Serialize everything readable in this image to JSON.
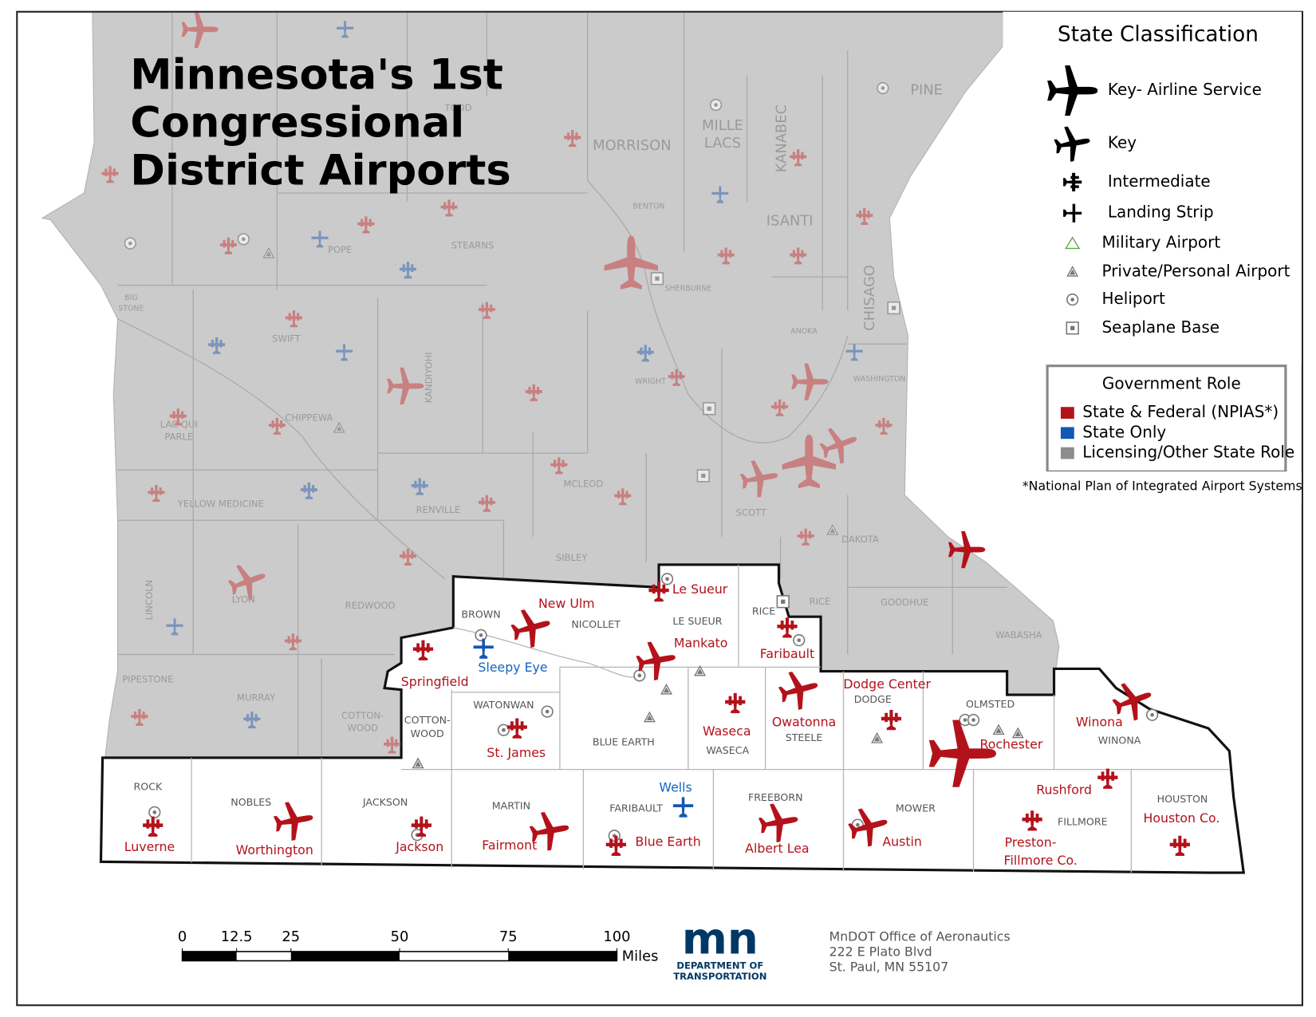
{
  "title": [
    "Minnesota's 1st",
    "Congressional",
    "District Airports"
  ],
  "legend": {
    "title": "State Classification",
    "items": [
      "Key- Airline Service",
      "Key",
      "Intermediate",
      "Landing Strip",
      "Military Airport",
      "Private/Personal Airport",
      "Heliport",
      "Seaplane Base"
    ],
    "role_title": "Government Role",
    "roles": [
      {
        "label": "State & Federal (NPIAS*)",
        "color": "#b3121b"
      },
      {
        "label": "State Only",
        "color": "#1258b4"
      },
      {
        "label": "Licensing/Other State Role",
        "color": "#8c8c8c"
      }
    ],
    "footnote": "*National Plan of Integrated Airport Systems"
  },
  "airports": [
    {
      "name": "Le Sueur",
      "class": "Intermediate",
      "role": "State & Federal (NPIAS*)"
    },
    {
      "name": "New Ulm",
      "class": "Key",
      "role": "State & Federal (NPIAS*)"
    },
    {
      "name": "Springfield",
      "class": "Intermediate",
      "role": "State & Federal (NPIAS*)"
    },
    {
      "name": "Sleepy Eye",
      "class": "Landing Strip",
      "role": "State Only"
    },
    {
      "name": "Mankato",
      "class": "Key",
      "role": "State & Federal (NPIAS*)"
    },
    {
      "name": "Faribault",
      "class": "Intermediate",
      "role": "State & Federal (NPIAS*)"
    },
    {
      "name": "Waseca",
      "class": "Intermediate",
      "role": "State & Federal (NPIAS*)"
    },
    {
      "name": "Owatonna",
      "class": "Key",
      "role": "State & Federal (NPIAS*)"
    },
    {
      "name": "Dodge Center",
      "class": "Intermediate",
      "role": "State & Federal (NPIAS*)"
    },
    {
      "name": "Rochester",
      "class": "Key- Airline Service",
      "role": "State & Federal (NPIAS*)"
    },
    {
      "name": "Winona",
      "class": "Key",
      "role": "State & Federal (NPIAS*)"
    },
    {
      "name": "St. James",
      "class": "Intermediate",
      "role": "State & Federal (NPIAS*)"
    },
    {
      "name": "Rushford",
      "class": "Intermediate",
      "role": "State & Federal (NPIAS*)"
    },
    {
      "name": "Houston Co.",
      "class": "Intermediate",
      "role": "State & Federal (NPIAS*)"
    },
    {
      "name_lines": [
        "Preston-",
        "Fillmore Co."
      ],
      "class": "Intermediate",
      "role": "State & Federal (NPIAS*)"
    },
    {
      "name": "Austin",
      "class": "Key",
      "role": "State & Federal (NPIAS*)"
    },
    {
      "name": "Albert Lea",
      "class": "Key",
      "role": "State & Federal (NPIAS*)"
    },
    {
      "name": "Wells",
      "class": "Landing Strip",
      "role": "State Only"
    },
    {
      "name": "Blue Earth",
      "class": "Intermediate",
      "role": "State & Federal (NPIAS*)"
    },
    {
      "name": "Fairmont",
      "class": "Key",
      "role": "State & Federal (NPIAS*)"
    },
    {
      "name": "Jackson",
      "class": "Intermediate",
      "role": "State & Federal (NPIAS*)"
    },
    {
      "name": "Worthington",
      "class": "Key",
      "role": "State & Federal (NPIAS*)"
    },
    {
      "name": "Luverne",
      "class": "Intermediate",
      "role": "State & Federal (NPIAS*)"
    }
  ],
  "district_counties": [
    [
      "BROWN"
    ],
    [
      "NICOLLET"
    ],
    [
      "LE SUEUR"
    ],
    [
      "RICE"
    ],
    [
      "WATONWAN"
    ],
    [
      "COTTON-",
      "WOOD"
    ],
    [
      "BLUE EARTH"
    ],
    [
      "WASECA"
    ],
    [
      "STEELE"
    ],
    [
      "DODGE"
    ],
    [
      "OLMSTED"
    ],
    [
      "WINONA"
    ],
    [
      "ROCK"
    ],
    [
      "NOBLES"
    ],
    [
      "JACKSON"
    ],
    [
      "MARTIN"
    ],
    [
      "FARIBAULT"
    ],
    [
      "FREEBORN"
    ],
    [
      "MOWER"
    ],
    [
      "FILLMORE"
    ],
    [
      "HOUSTON"
    ]
  ],
  "other_counties": [
    [
      "MORRISON"
    ],
    [
      "MILLE",
      "LACS"
    ],
    [
      "ISANTI"
    ],
    [
      "PINE"
    ],
    [
      "KANABEC"
    ],
    [
      "CHISAGO"
    ],
    [
      "TODD"
    ],
    [
      "BENTON"
    ],
    [
      "STEARNS"
    ],
    [
      "POPE"
    ],
    [
      "SWIFT"
    ],
    [
      "KANDIYOHI"
    ],
    [
      "CHIPPEWA"
    ],
    [
      "LAC QUI",
      "PARLE"
    ],
    [
      "YELLOW MEDICINE"
    ],
    [
      "RENVILLE"
    ],
    [
      "MCLEOD"
    ],
    [
      "SIBLEY"
    ],
    [
      "SCOTT"
    ],
    [
      "DAKOTA"
    ],
    [
      "GOODHUE"
    ],
    [
      "WABASHA"
    ],
    [
      "RICE"
    ],
    [
      "LYON"
    ],
    [
      "LINCOLN"
    ],
    [
      "PIPESTONE"
    ],
    [
      "MURRAY"
    ],
    [
      "REDWOOD"
    ],
    [
      "COTTON-",
      "WOOD"
    ],
    [
      "BIG",
      "STONE"
    ],
    [
      "SHERBURNE"
    ],
    [
      "WRIGHT"
    ],
    [
      "ANOKA"
    ],
    [
      "WASHINGTON"
    ]
  ],
  "scale_bar": {
    "ticks": [
      0,
      12.5,
      25,
      50,
      75,
      100
    ],
    "unit": "Miles"
  },
  "logo": {
    "mark": "mn",
    "lines": [
      "DEPARTMENT OF",
      "TRANSPORTATION"
    ]
  },
  "address": [
    "MnDOT Office of Aeronautics",
    "222 E Plato Blvd",
    "St. Paul, MN 55107"
  ]
}
